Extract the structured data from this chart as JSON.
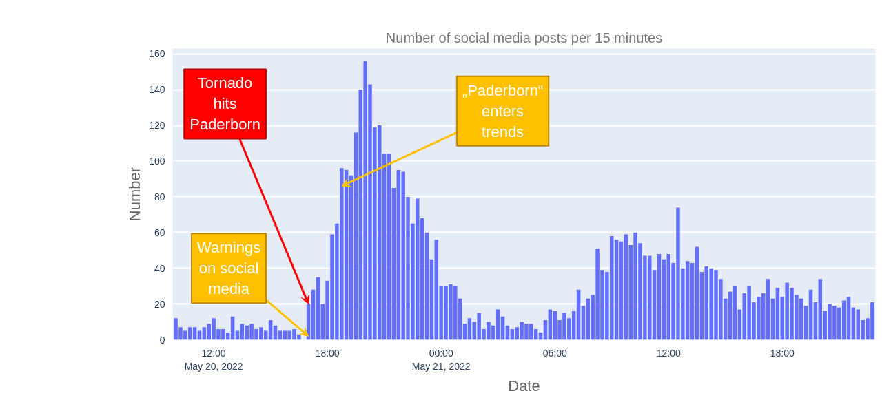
{
  "chart_data": {
    "type": "bar",
    "title": "Number of social media posts per 15 minutes",
    "xlabel": "Date",
    "ylabel": "Number",
    "x": [
      "2022-05-20T10:00",
      "2022-05-20T10:15",
      "2022-05-20T10:30",
      "2022-05-20T10:45",
      "2022-05-20T11:00",
      "2022-05-20T11:15",
      "2022-05-20T11:30",
      "2022-05-20T11:45",
      "2022-05-20T12:00",
      "2022-05-20T12:15",
      "2022-05-20T12:30",
      "2022-05-20T12:45",
      "2022-05-20T13:00",
      "2022-05-20T13:15",
      "2022-05-20T13:30",
      "2022-05-20T13:45",
      "2022-05-20T14:00",
      "2022-05-20T14:15",
      "2022-05-20T14:30",
      "2022-05-20T14:45",
      "2022-05-20T15:00",
      "2022-05-20T15:15",
      "2022-05-20T15:30",
      "2022-05-20T15:45",
      "2022-05-20T16:00",
      "2022-05-20T16:15",
      "2022-05-20T16:30",
      "2022-05-20T16:45",
      "2022-05-20T17:00",
      "2022-05-20T17:15",
      "2022-05-20T17:30",
      "2022-05-20T17:45",
      "2022-05-20T18:00",
      "2022-05-20T18:15",
      "2022-05-20T18:30",
      "2022-05-20T18:45",
      "2022-05-20T19:00",
      "2022-05-20T19:15",
      "2022-05-20T19:30",
      "2022-05-20T19:45",
      "2022-05-20T20:00",
      "2022-05-20T20:15",
      "2022-05-20T20:30",
      "2022-05-20T20:45",
      "2022-05-20T21:00",
      "2022-05-20T21:15",
      "2022-05-20T21:30",
      "2022-05-20T21:45",
      "2022-05-20T22:00",
      "2022-05-20T22:15",
      "2022-05-20T22:30",
      "2022-05-20T22:45",
      "2022-05-20T23:00",
      "2022-05-20T23:15",
      "2022-05-20T23:30",
      "2022-05-20T23:45",
      "2022-05-21T00:00",
      "2022-05-21T00:15",
      "2022-05-21T00:30",
      "2022-05-21T00:45",
      "2022-05-21T01:00",
      "2022-05-21T01:15",
      "2022-05-21T01:30",
      "2022-05-21T01:45",
      "2022-05-21T02:00",
      "2022-05-21T02:15",
      "2022-05-21T02:30",
      "2022-05-21T02:45",
      "2022-05-21T03:00",
      "2022-05-21T03:15",
      "2022-05-21T03:30",
      "2022-05-21T03:45",
      "2022-05-21T04:00",
      "2022-05-21T04:15",
      "2022-05-21T04:30",
      "2022-05-21T04:45",
      "2022-05-21T05:00",
      "2022-05-21T05:15",
      "2022-05-21T05:30",
      "2022-05-21T05:45",
      "2022-05-21T06:00",
      "2022-05-21T06:15",
      "2022-05-21T06:30",
      "2022-05-21T06:45",
      "2022-05-21T07:00",
      "2022-05-21T07:15",
      "2022-05-21T07:30",
      "2022-05-21T07:45",
      "2022-05-21T08:00",
      "2022-05-21T08:15",
      "2022-05-21T08:30",
      "2022-05-21T08:45",
      "2022-05-21T09:00",
      "2022-05-21T09:15",
      "2022-05-21T09:30",
      "2022-05-21T09:45",
      "2022-05-21T10:00",
      "2022-05-21T10:15",
      "2022-05-21T10:30",
      "2022-05-21T10:45",
      "2022-05-21T11:00",
      "2022-05-21T11:15",
      "2022-05-21T11:30",
      "2022-05-21T11:45",
      "2022-05-21T12:00",
      "2022-05-21T12:15",
      "2022-05-21T12:30",
      "2022-05-21T12:45",
      "2022-05-21T13:00",
      "2022-05-21T13:15",
      "2022-05-21T13:30",
      "2022-05-21T13:45",
      "2022-05-21T14:00",
      "2022-05-21T14:15",
      "2022-05-21T14:30",
      "2022-05-21T14:45",
      "2022-05-21T15:00",
      "2022-05-21T15:15",
      "2022-05-21T15:30",
      "2022-05-21T15:45",
      "2022-05-21T16:00",
      "2022-05-21T16:15",
      "2022-05-21T16:30",
      "2022-05-21T16:45",
      "2022-05-21T17:00",
      "2022-05-21T17:15",
      "2022-05-21T17:30",
      "2022-05-21T17:45",
      "2022-05-21T18:00",
      "2022-05-21T18:15",
      "2022-05-21T18:30",
      "2022-05-21T18:45",
      "2022-05-21T19:00",
      "2022-05-21T19:15",
      "2022-05-21T19:30",
      "2022-05-21T19:45",
      "2022-05-21T20:00",
      "2022-05-21T20:15",
      "2022-05-21T20:30",
      "2022-05-21T20:45",
      "2022-05-21T21:00",
      "2022-05-21T21:15",
      "2022-05-21T21:30",
      "2022-05-21T21:45",
      "2022-05-21T22:00",
      "2022-05-21T22:15",
      "2022-05-21T22:30",
      "2022-05-21T22:45"
    ],
    "series": [
      {
        "color": "#636efa",
        "values": [
          12,
          7,
          5,
          7,
          7,
          5,
          7,
          9,
          12,
          6,
          6,
          4,
          13,
          5,
          9,
          8,
          9,
          6,
          7,
          5,
          11,
          8,
          5,
          5,
          5,
          6,
          3,
          0,
          20,
          28,
          35,
          20,
          33,
          59,
          65,
          96,
          95,
          92,
          116,
          140,
          156,
          143,
          119,
          120,
          104,
          104,
          85,
          95,
          94,
          80,
          65,
          79,
          68,
          60,
          45,
          56,
          30,
          30,
          31,
          30,
          23,
          9,
          12,
          10,
          15,
          6,
          10,
          8,
          17,
          13,
          8,
          6,
          7,
          10,
          9,
          9,
          6,
          4,
          11,
          17,
          16,
          11,
          15,
          12,
          16,
          28,
          19,
          23,
          25,
          51,
          39,
          38,
          58,
          56,
          55,
          59,
          53,
          60,
          54,
          47,
          47,
          39,
          48,
          45,
          48,
          43,
          74,
          40,
          44,
          43,
          52,
          38,
          41,
          40,
          39,
          34,
          23,
          27,
          30,
          17,
          26,
          30,
          21,
          24,
          26,
          34,
          23,
          29,
          24,
          32,
          29,
          25,
          23,
          19,
          28,
          21,
          34,
          16,
          20,
          19,
          18,
          22,
          24,
          18,
          17,
          11,
          12,
          21
        ]
      }
    ],
    "xlim": [
      "2022-05-20T09:50",
      "2022-05-21T22:55"
    ],
    "xticks": [
      {
        "value": "2022-05-20T12:00",
        "label": "12:00\nMay 20, 2022"
      },
      {
        "value": "2022-05-20T18:00",
        "label": "18:00"
      },
      {
        "value": "2022-05-21T00:00",
        "label": "00:00\nMay 21, 2022"
      },
      {
        "value": "2022-05-21T06:00",
        "label": "06:00"
      },
      {
        "value": "2022-05-21T12:00",
        "label": "12:00"
      },
      {
        "value": "2022-05-21T18:00",
        "label": "18:00"
      }
    ],
    "ylim": [
      0,
      163
    ],
    "yticks": [
      0,
      20,
      40,
      60,
      80,
      100,
      120,
      140,
      160
    ],
    "grid": "y",
    "annotations": [
      {
        "text": "Tornado hits Paderborn",
        "x": "2022-05-20T17:00",
        "y": 20
      },
      {
        "text": "Warnings on social media",
        "x": "2022-05-20T17:00",
        "y": 2
      },
      {
        "text": "„Paderborn“ enters trends",
        "x": "2022-05-20T18:45",
        "y": 86
      }
    ]
  }
}
